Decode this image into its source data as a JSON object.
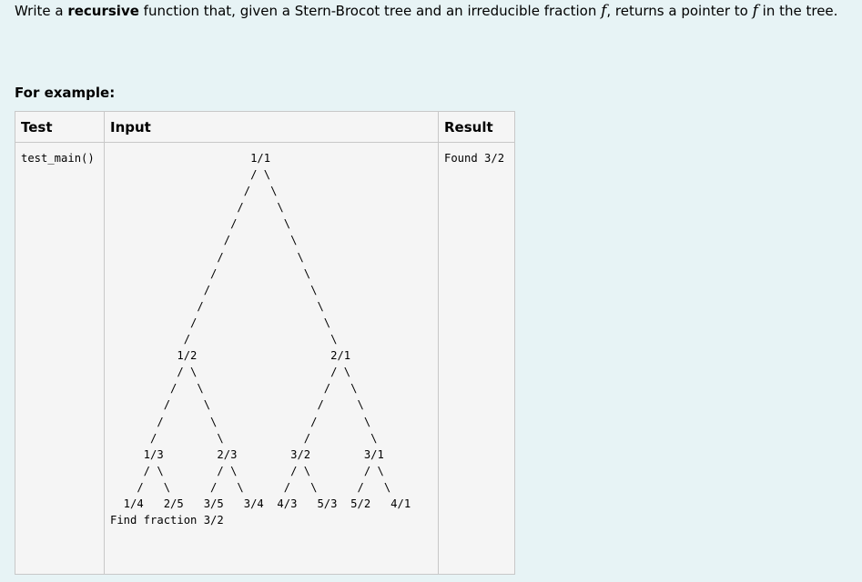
{
  "question": {
    "part1": "Write a ",
    "bold": "recursive",
    "part2": " function that, given a Stern-Brocot tree and an irreducible fraction ",
    "var1": "f",
    "part3": ", returns a pointer to ",
    "var2": "f",
    "part4": " in the tree."
  },
  "for_example": "For example:",
  "table": {
    "headers": {
      "test": "Test",
      "input": "Input",
      "result": "Result"
    },
    "rows": [
      {
        "test": "test_main()",
        "input": "                     1/1\n                     / \\\n                    /   \\\n                   /     \\\n                  /       \\\n                 /         \\\n                /           \\\n               /             \\\n              /               \\\n             /                 \\\n            /                   \\\n           /                     \\\n          1/2                    2/1\n          / \\                    / \\\n         /   \\                  /   \\\n        /     \\                /     \\\n       /       \\              /       \\\n      /         \\            /         \\\n     1/3        2/3        3/2        3/1\n     / \\        / \\        / \\        / \\\n    /   \\      /   \\      /   \\      /   \\\n  1/4   2/5   3/5   3/4  4/3   5/3  5/2   4/1\nFind fraction 3/2",
        "result": "Found 3/2"
      }
    ]
  }
}
